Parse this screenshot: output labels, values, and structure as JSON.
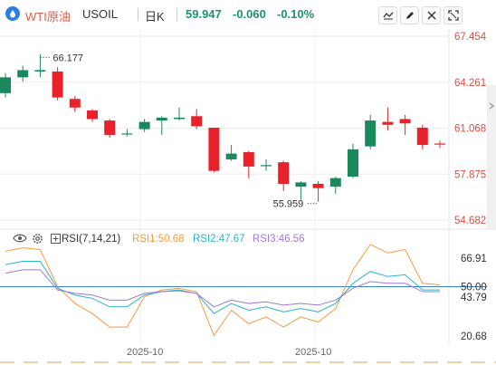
{
  "header": {
    "symbol_cn": "WTI原油",
    "symbol_code": "USOIL",
    "period": "日K",
    "price": "59.947",
    "change": "-0.060",
    "change_pct": "-0.10%"
  },
  "toolbar_icons": [
    "line-chart-icon",
    "draw-icon",
    "candle-settings-icon",
    "fullscreen-icon"
  ],
  "rsi": {
    "label": "RSI(7,14,21)",
    "rsi1": "RSI1:50.68",
    "rsi2": "RSI2:47.67",
    "rsi3": "RSI3:46.56",
    "axis": [
      "66.91",
      "50.00",
      "43.79",
      "20.68"
    ]
  },
  "price_axis": [
    "67.454",
    "64.261",
    "61.068",
    "57.875",
    "54.682"
  ],
  "annotations": {
    "high": "66.177",
    "low": "55.959"
  },
  "dates": [
    "2025-10",
    "2025-10"
  ],
  "colors": {
    "up": "#1a8a5e",
    "down": "#e8212b",
    "rsi1": "#f29b44",
    "rsi2": "#2bb3c8",
    "rsi3": "#9a7ad6",
    "brand": "#2b7de9"
  },
  "chart_data": {
    "type": "candlestick",
    "price_range": [
      54.682,
      67.454
    ],
    "candles": [
      {
        "o": 63.5,
        "c": 64.6,
        "h": 64.9,
        "l": 63.2
      },
      {
        "o": 64.6,
        "c": 65.1,
        "h": 65.4,
        "l": 64.3
      },
      {
        "o": 65.0,
        "c": 65.1,
        "h": 66.2,
        "l": 64.6
      },
      {
        "o": 65.0,
        "c": 63.2,
        "h": 65.3,
        "l": 63.0
      },
      {
        "o": 63.1,
        "c": 62.5,
        "h": 63.3,
        "l": 62.2
      },
      {
        "o": 62.3,
        "c": 61.7,
        "h": 62.4,
        "l": 61.5
      },
      {
        "o": 61.6,
        "c": 60.6,
        "h": 61.7,
        "l": 60.4
      },
      {
        "o": 60.7,
        "c": 60.7,
        "h": 61.0,
        "l": 60.5
      },
      {
        "o": 61.0,
        "c": 61.5,
        "h": 61.7,
        "l": 60.8
      },
      {
        "o": 61.6,
        "c": 61.8,
        "h": 61.9,
        "l": 60.6
      },
      {
        "o": 61.7,
        "c": 61.8,
        "h": 62.5,
        "l": 61.6
      },
      {
        "o": 61.9,
        "c": 61.2,
        "h": 62.4,
        "l": 61.0
      },
      {
        "o": 61.1,
        "c": 58.1,
        "h": 61.1,
        "l": 58.0
      },
      {
        "o": 58.9,
        "c": 59.3,
        "h": 59.9,
        "l": 58.8
      },
      {
        "o": 59.4,
        "c": 58.4,
        "h": 59.5,
        "l": 57.6
      },
      {
        "o": 58.5,
        "c": 58.5,
        "h": 58.9,
        "l": 58.1
      },
      {
        "o": 58.7,
        "c": 57.2,
        "h": 58.8,
        "l": 56.7
      },
      {
        "o": 57.0,
        "c": 57.3,
        "h": 57.4,
        "l": 56.1
      },
      {
        "o": 57.2,
        "c": 56.9,
        "h": 57.4,
        "l": 55.96
      },
      {
        "o": 57.0,
        "c": 57.6,
        "h": 57.7,
        "l": 56.5
      },
      {
        "o": 57.7,
        "c": 59.6,
        "h": 60.0,
        "l": 57.6
      },
      {
        "o": 59.8,
        "c": 61.6,
        "h": 62.0,
        "l": 59.6
      },
      {
        "o": 61.5,
        "c": 61.3,
        "h": 62.5,
        "l": 60.9
      },
      {
        "o": 61.7,
        "c": 61.4,
        "h": 62.0,
        "l": 60.6
      },
      {
        "o": 61.1,
        "c": 59.9,
        "h": 61.3,
        "l": 59.6
      },
      {
        "o": 60.0,
        "c": 59.95,
        "h": 60.2,
        "l": 59.7
      }
    ],
    "rsi_range": [
      20.68,
      66.91
    ],
    "rsi_series": [
      {
        "name": "RSI1",
        "values": [
          71,
          73,
          72,
          50,
          40,
          34,
          26,
          26,
          44,
          48,
          49,
          47,
          21,
          36,
          28,
          32,
          26,
          32,
          29,
          37,
          60,
          75,
          70,
          72,
          52,
          51
        ]
      },
      {
        "name": "RSI2",
        "values": [
          63,
          65,
          65,
          49,
          45,
          43,
          38,
          38,
          45,
          47,
          48,
          46,
          34,
          40,
          36,
          38,
          35,
          37,
          35,
          40,
          52,
          59,
          56,
          57,
          48,
          48
        ]
      },
      {
        "name": "RSI3",
        "values": [
          58,
          60,
          60,
          48,
          46,
          45,
          42,
          42,
          46,
          47,
          47.5,
          46,
          38,
          42,
          40,
          41,
          39,
          40,
          39,
          42,
          49,
          53,
          52,
          52,
          47,
          47
        ]
      }
    ],
    "rsi_reference": 50.0
  }
}
